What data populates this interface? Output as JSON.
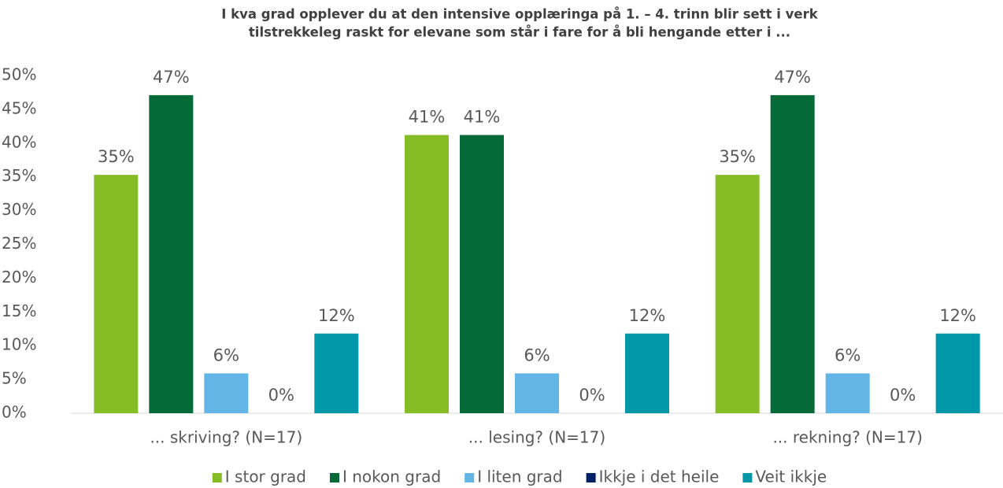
{
  "chart_data": {
    "type": "bar",
    "title": [
      "I kva grad opplever du at den intensive opplæringa på 1. – 4. trinn blir sett i verk",
      "tilstrekkeleg raskt for elevane som står i fare for å bli hengande etter i ..."
    ],
    "categories": [
      "... skriving? (N=17)",
      "... lesing? (N=17)",
      "... rekning? (N=17)"
    ],
    "series": [
      {
        "name": "I stor grad",
        "color": "#86bc25",
        "values": [
          35.3,
          41.2,
          35.3
        ],
        "value_labels": [
          "35%",
          "41%",
          "35%"
        ]
      },
      {
        "name": "I nokon grad",
        "color": "#046a38",
        "values": [
          47.1,
          41.2,
          47.1
        ],
        "value_labels": [
          "47%",
          "41%",
          "47%"
        ]
      },
      {
        "name": "I liten grad",
        "color": "#62b5e5",
        "values": [
          5.9,
          5.9,
          5.9
        ],
        "value_labels": [
          "6%",
          "6%",
          "6%"
        ]
      },
      {
        "name": "Ikkje i det heile",
        "color": "#012169",
        "values": [
          0,
          0,
          0
        ],
        "value_labels": [
          "0%",
          "0%",
          "0%"
        ]
      },
      {
        "name": "Veit ikkje",
        "color": "#0097a9",
        "values": [
          11.8,
          11.8,
          11.8
        ],
        "value_labels": [
          "12%",
          "12%",
          "12%"
        ]
      }
    ],
    "ylim": [
      0,
      50
    ],
    "yticks": [
      {
        "value": 0,
        "label": "0%"
      },
      {
        "value": 5,
        "label": "5%"
      },
      {
        "value": 10,
        "label": "10%"
      },
      {
        "value": 15,
        "label": "15%"
      },
      {
        "value": 20,
        "label": "20%"
      },
      {
        "value": 25,
        "label": "25%"
      },
      {
        "value": 30,
        "label": "30%"
      },
      {
        "value": 35,
        "label": "35%"
      },
      {
        "value": 40,
        "label": "40%"
      },
      {
        "value": 45,
        "label": "45%"
      },
      {
        "value": 50,
        "label": "50%"
      }
    ],
    "grid": false,
    "legend": "bottom"
  }
}
